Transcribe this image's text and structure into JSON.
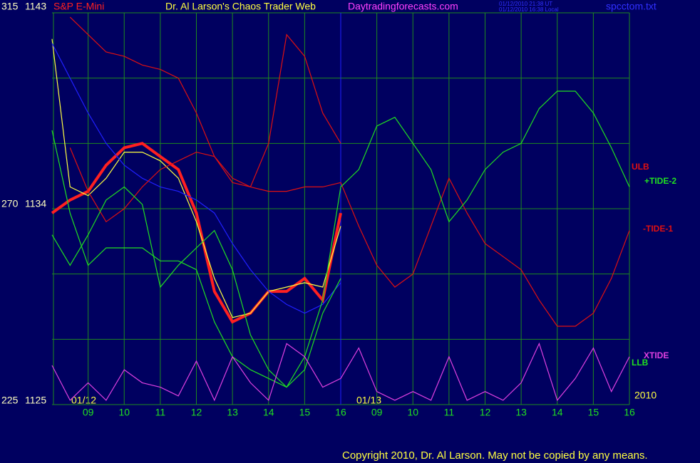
{
  "header": {
    "symbol": "S&P E-Mini",
    "title": "Dr. Al Larson's Chaos Trader Web",
    "site": "Daytradingforecasts.com",
    "time_ut": "01/12/2010 21:38 UT",
    "time_local": "01/12/2010 16:38 Local",
    "file": "spcctom.txt"
  },
  "chart_data": {
    "type": "line",
    "x": [
      0,
      0.5,
      1,
      1.5,
      2,
      2.5,
      3,
      3.5,
      4,
      4.5,
      5,
      5.5,
      6,
      6.5,
      7,
      7.5,
      8,
      8.5,
      9,
      9.5,
      10,
      10.5,
      11,
      11.5,
      12,
      12.5,
      13,
      13.5,
      14,
      14.5,
      15,
      15.5,
      16
    ],
    "xlim": [
      0,
      16
    ],
    "xticks": [
      {
        "value": 1,
        "label": "09"
      },
      {
        "value": 2,
        "label": "10"
      },
      {
        "value": 3,
        "label": "11"
      },
      {
        "value": 4,
        "label": "12"
      },
      {
        "value": 5,
        "label": "13"
      },
      {
        "value": 6,
        "label": "14"
      },
      {
        "value": 7,
        "label": "15"
      },
      {
        "value": 8,
        "label": "16"
      },
      {
        "value": 9,
        "label": "09"
      },
      {
        "value": 10,
        "label": "10"
      },
      {
        "value": 11,
        "label": "11"
      },
      {
        "value": 12,
        "label": "12"
      },
      {
        "value": 13,
        "label": "13"
      },
      {
        "value": 14,
        "label": "14"
      },
      {
        "value": 15,
        "label": "15"
      },
      {
        "value": 16,
        "label": "16"
      }
    ],
    "ylim": [
      225,
      315
    ],
    "yticks": [
      225,
      270,
      315
    ],
    "y2lim": [
      1125,
      1143
    ],
    "y2ticks": [
      1125,
      {
        "value": 1128,
        "label": null
      },
      {
        "value": 1131,
        "label": null
      },
      1134,
      {
        "value": 1137,
        "label": null
      },
      {
        "value": 1140,
        "label": null
      },
      1143
    ],
    "grid": true,
    "date_labels": [
      "01/12",
      "01/13",
      "2010"
    ],
    "series": [
      {
        "color": "#ff2020",
        "values": [
          269,
          272,
          274,
          280,
          284,
          285,
          282,
          279,
          269,
          251,
          244,
          246,
          251,
          251,
          254,
          249,
          269,
          null,
          null,
          null,
          null,
          null,
          null,
          null,
          null,
          null,
          null,
          null,
          null,
          null,
          null,
          null,
          null
        ]
      },
      {
        "color": "#ffff40",
        "values": [
          309,
          275,
          273,
          277,
          283,
          283,
          281,
          277,
          267,
          254,
          245,
          246,
          251,
          252,
          253,
          252,
          266,
          null,
          null,
          null,
          null,
          null,
          null,
          null,
          null,
          null,
          null,
          null,
          null,
          null,
          null,
          null,
          null
        ]
      },
      {
        "color": "#2020ff",
        "values": [
          308,
          300,
          292,
          285,
          280,
          277,
          275,
          274,
          272,
          269,
          262,
          256,
          251,
          248,
          246,
          248,
          253,
          null,
          null,
          null,
          null,
          null,
          null,
          null,
          null,
          null,
          null,
          null,
          null,
          null,
          null,
          null,
          null
        ]
      },
      {
        "name": "ULB",
        "color": "#e01010",
        "values": [
          null,
          314,
          310,
          306,
          305,
          303,
          302,
          300,
          292,
          282,
          276,
          275,
          285,
          310,
          305,
          292,
          285,
          null,
          null,
          null,
          null,
          null,
          null,
          null,
          null,
          null,
          null,
          null,
          null,
          null,
          null,
          null,
          null
        ]
      },
      {
        "name": "-TIDE-1",
        "color": "#e01010",
        "values": [
          null,
          284,
          274,
          267,
          270,
          275,
          279,
          281,
          283,
          282,
          277,
          275,
          274,
          274,
          275,
          275,
          276,
          266,
          257,
          252,
          255,
          266,
          277,
          269,
          262,
          259,
          256,
          249,
          243,
          243,
          246,
          254,
          265
        ]
      },
      {
        "name": "+TIDE-2",
        "color": "#20e020",
        "values": [
          288,
          269,
          257,
          261,
          261,
          261,
          258,
          258,
          256,
          244,
          236,
          233,
          231,
          229,
          236,
          249,
          275,
          279,
          289,
          291,
          285,
          279,
          267,
          272,
          279,
          283,
          285,
          293,
          297,
          297,
          292,
          284,
          275
        ]
      },
      {
        "name": "LLB",
        "color": "#20e020",
        "values": [
          264,
          257,
          264,
          272,
          275,
          271,
          252,
          257,
          261,
          265,
          256,
          241,
          233,
          229,
          233,
          246,
          254,
          null,
          null,
          null,
          null,
          null,
          null,
          null,
          null,
          null,
          null,
          null,
          null,
          null,
          null,
          null,
          null
        ]
      },
      {
        "name": "XTIDE",
        "color": "#e040e0",
        "values": [
          234,
          226,
          230,
          226,
          233,
          230,
          229,
          227,
          235,
          226,
          236,
          230,
          226,
          239,
          236,
          229,
          231,
          238,
          228,
          226,
          228,
          226,
          236,
          226,
          228,
          226,
          230,
          239,
          226,
          231,
          238,
          228,
          236
        ]
      }
    ]
  },
  "footer": {
    "copyright": "Copyright 2010, Dr. Al Larson. May not be copied by any means."
  }
}
